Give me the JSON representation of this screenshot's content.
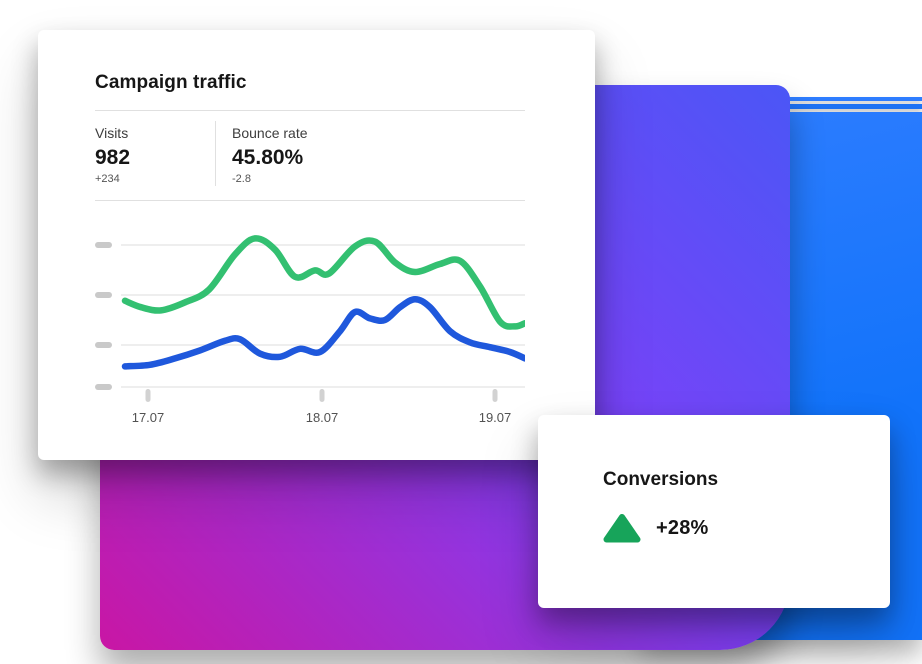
{
  "campaign_card": {
    "title": "Campaign traffic",
    "stats": [
      {
        "label": "Visits",
        "value": "982",
        "delta": "+234"
      },
      {
        "label": "Bounce rate",
        "value": "45.80%",
        "delta": "-2.8"
      }
    ]
  },
  "conversions_card": {
    "title": "Conversions",
    "value": "+28%",
    "trend_icon": "triangle-up-icon"
  },
  "colors": {
    "green_line": "#33c071",
    "blue_line": "#1f58dc",
    "blue_panel": "#1273fa",
    "gradient_top": "#4b56f6",
    "gradient_mid": "#7d41f8",
    "gradient_bottom": "#c916a4",
    "triangle_green": "#17a45a"
  },
  "chart_data": {
    "type": "line",
    "title": "Campaign traffic",
    "xlabel": "",
    "ylabel": "",
    "x_axis": {
      "labels": [
        "17.07",
        "18.07",
        "19.07"
      ],
      "note": "dates, ticks unlabeled between"
    },
    "y_axis": {
      "labels": [],
      "tick_count": 4,
      "note": "unlabeled tick marks; values below are relative units 0-100"
    },
    "legend": "none",
    "grid": "horizontal",
    "series": [
      {
        "name": "green",
        "color": "#33c071",
        "points": [
          [
            0,
            57
          ],
          [
            0.04,
            53
          ],
          [
            0.09,
            51
          ],
          [
            0.15,
            56
          ],
          [
            0.21,
            64
          ],
          [
            0.275,
            86
          ],
          [
            0.325,
            96
          ],
          [
            0.375,
            89
          ],
          [
            0.425,
            72
          ],
          [
            0.475,
            76
          ],
          [
            0.51,
            74
          ],
          [
            0.575,
            91
          ],
          [
            0.625,
            94
          ],
          [
            0.675,
            81
          ],
          [
            0.725,
            75
          ],
          [
            0.7875,
            80
          ],
          [
            0.8375,
            82
          ],
          [
            0.8875,
            66
          ],
          [
            0.9375,
            44
          ],
          [
            0.975,
            41
          ],
          [
            1,
            43
          ]
        ]
      },
      {
        "name": "blue",
        "color": "#1f58dc",
        "points": [
          [
            0,
            16
          ],
          [
            0.0625,
            17
          ],
          [
            0.125,
            21
          ],
          [
            0.1875,
            26
          ],
          [
            0.25,
            32
          ],
          [
            0.2875,
            33
          ],
          [
            0.3375,
            24
          ],
          [
            0.3875,
            22
          ],
          [
            0.4375,
            27
          ],
          [
            0.4875,
            25
          ],
          [
            0.5375,
            38
          ],
          [
            0.575,
            50
          ],
          [
            0.6125,
            46
          ],
          [
            0.65,
            45
          ],
          [
            0.6875,
            53
          ],
          [
            0.725,
            58
          ],
          [
            0.7625,
            53
          ],
          [
            0.8125,
            38
          ],
          [
            0.8625,
            31
          ],
          [
            0.9125,
            28
          ],
          [
            0.9625,
            25
          ],
          [
            1,
            21
          ]
        ]
      }
    ]
  }
}
